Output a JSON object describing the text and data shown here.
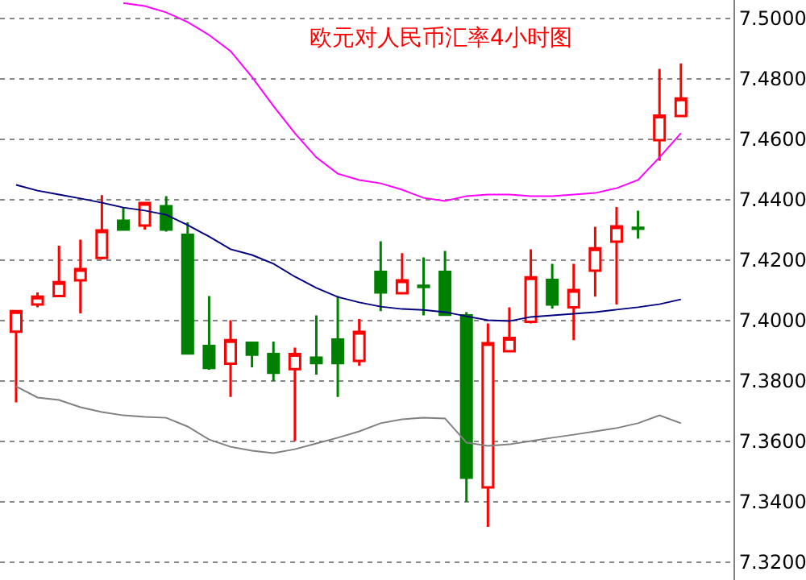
{
  "chart_data": {
    "type": "candlestick",
    "title": "欧元对人民币汇率4小时图",
    "categories": [
      null,
      null,
      null,
      null,
      null,
      null,
      null,
      null,
      null,
      null,
      null,
      null,
      null,
      null,
      null,
      null,
      null,
      null,
      null,
      null,
      null,
      null,
      null,
      null,
      null,
      null,
      null,
      null,
      null,
      null,
      null,
      null
    ],
    "ohlc": [
      [
        7.3962,
        7.403,
        7.3728,
        7.403
      ],
      [
        7.4052,
        7.4092,
        7.4043,
        7.4078
      ],
      [
        7.408,
        7.4247,
        7.408,
        7.4126
      ],
      [
        7.4132,
        7.4267,
        7.4023,
        7.4169
      ],
      [
        7.4206,
        7.4414,
        7.4201,
        7.4297
      ],
      [
        7.4329,
        7.4372,
        7.43,
        7.43
      ],
      [
        7.4313,
        7.4388,
        7.43,
        7.4388
      ],
      [
        7.4377,
        7.4411,
        7.4293,
        7.43
      ],
      [
        7.4283,
        7.4324,
        7.389,
        7.389
      ],
      [
        7.3915,
        7.408,
        7.3836,
        7.3842
      ],
      [
        7.3856,
        7.4,
        7.3746,
        7.3934
      ],
      [
        7.3925,
        7.3925,
        7.3844,
        7.3886
      ],
      [
        7.3888,
        7.3929,
        7.3799,
        7.3826
      ],
      [
        7.3838,
        7.3909,
        7.36,
        7.3888
      ],
      [
        7.3876,
        7.4016,
        7.382,
        7.3858
      ],
      [
        7.3936,
        7.408,
        7.3746,
        7.3858
      ],
      [
        7.3865,
        7.4004,
        7.3849,
        7.3961
      ],
      [
        7.416,
        7.4261,
        7.403,
        7.4092
      ],
      [
        7.4089,
        7.4222,
        7.4089,
        7.4132
      ],
      [
        7.4114,
        7.4208,
        7.4016,
        7.411
      ],
      [
        7.416,
        7.4229,
        7.4018,
        7.4018
      ],
      [
        7.4016,
        7.4027,
        7.3399,
        7.3479
      ],
      [
        7.3447,
        7.3989,
        7.3316,
        7.3924
      ],
      [
        7.3897,
        7.4043,
        7.3897,
        7.3941
      ],
      [
        7.3995,
        7.4235,
        7.3989,
        7.4142
      ],
      [
        7.4133,
        7.4187,
        7.4039,
        7.4052
      ],
      [
        7.4043,
        7.4187,
        7.3934,
        7.41
      ],
      [
        7.4164,
        7.4309,
        7.4078,
        7.4238
      ],
      [
        7.426,
        7.4375,
        7.4052,
        7.4311
      ],
      [
        7.4306,
        7.4363,
        7.427,
        7.4303
      ],
      [
        7.4596,
        7.4832,
        7.4528,
        7.4677
      ],
      [
        7.4676,
        7.485,
        7.4676,
        7.4734
      ]
    ],
    "colors": [
      "#ff0000",
      "#ff0000",
      "#ff0000",
      "#ff0000",
      "#ff0000",
      "#008000",
      "#ff0000",
      "#008000",
      "#008000",
      "#008000",
      "#ff0000",
      "#008000",
      "#008000",
      "#ff0000",
      "#008000",
      "#008000",
      "#ff0000",
      "#008000",
      "#ff0000",
      "#008000",
      "#008000",
      "#008000",
      "#ff0000",
      "#ff0000",
      "#ff0000",
      "#008000",
      "#ff0000",
      "#ff0000",
      "#ff0000",
      "#008000",
      "#ff0000",
      "#ff0000"
    ],
    "series": [
      {
        "type": "line",
        "color": "#000080",
        "values": [
          7.4448,
          7.4429,
          7.4416,
          7.4403,
          7.4389,
          7.4373,
          7.4363,
          7.4349,
          7.4315,
          7.4277,
          7.4235,
          7.4216,
          7.4187,
          7.4144,
          7.4107,
          7.4077,
          7.4059,
          7.4045,
          7.4037,
          7.4034,
          7.4027,
          7.4013,
          7.4,
          7.3997,
          7.4011,
          7.4016,
          7.4021,
          7.4027,
          7.4035,
          7.4043,
          7.4053,
          7.4069
        ]
      },
      {
        "type": "line",
        "color": "#ff00ff",
        "values": [
          null,
          null,
          null,
          null,
          null,
          7.505,
          7.504,
          7.5019,
          7.4987,
          7.4944,
          7.4891,
          7.4805,
          7.4709,
          7.4619,
          7.4539,
          7.4485,
          7.4464,
          7.4453,
          7.4432,
          7.4405,
          7.4395,
          7.4411,
          7.4416,
          7.4416,
          7.4411,
          7.4411,
          7.4416,
          7.4421,
          7.4437,
          7.4464,
          7.4539,
          7.4619
        ]
      },
      {
        "type": "line",
        "color": "#808080",
        "values": [
          7.3781,
          7.3744,
          7.3736,
          7.3712,
          7.3696,
          7.3685,
          7.368,
          7.3677,
          7.3648,
          7.3605,
          7.3581,
          7.3568,
          7.356,
          7.3573,
          7.3592,
          7.3611,
          7.3632,
          7.3659,
          7.3672,
          7.3677,
          7.3675,
          7.3595,
          7.3584,
          7.3589,
          7.36,
          7.3611,
          7.3621,
          7.3632,
          7.3643,
          7.3659,
          7.3685,
          7.3659
        ]
      }
    ],
    "ylim": [
      7.314,
      7.506
    ],
    "yticks": [
      {
        "value": 7.32,
        "label": "7.3200"
      },
      {
        "value": 7.34,
        "label": "7.3400"
      },
      {
        "value": 7.36,
        "label": "7.3600"
      },
      {
        "value": 7.38,
        "label": "7.3800"
      },
      {
        "value": 7.4,
        "label": "7.4000"
      },
      {
        "value": 7.42,
        "label": "7.4200"
      },
      {
        "value": 7.44,
        "label": "7.4400"
      },
      {
        "value": 7.46,
        "label": "7.4600"
      },
      {
        "value": 7.48,
        "label": "7.4800"
      },
      {
        "value": 7.5,
        "label": "7.5000"
      }
    ],
    "grid": "y",
    "tick_labels": "y"
  }
}
